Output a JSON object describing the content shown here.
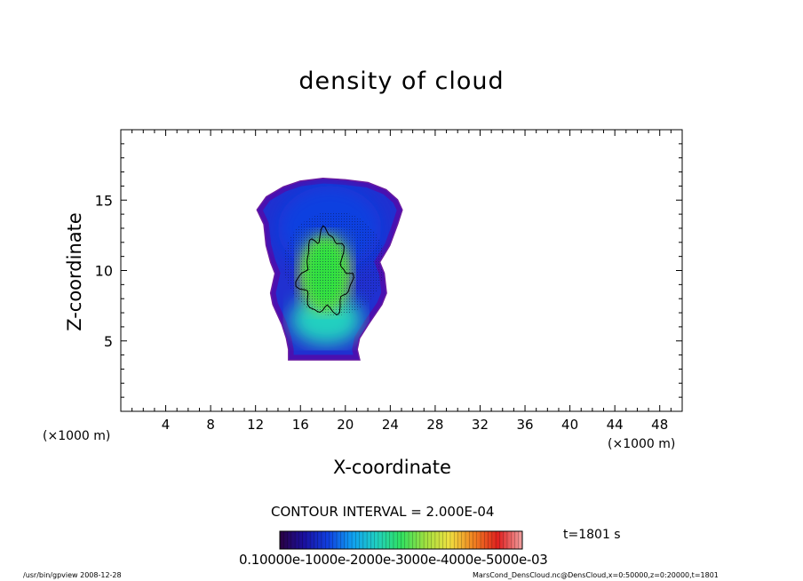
{
  "chart_data": {
    "type": "heatmap",
    "title": "density of cloud",
    "xlabel": "X-coordinate",
    "ylabel": "Z-coordinate",
    "x_unit_left": "(×1000 m)",
    "x_unit_right": "(×1000 m)",
    "xlim": [
      0,
      50
    ],
    "ylim": [
      0,
      20
    ],
    "x_ticks": [
      4,
      8,
      12,
      16,
      20,
      24,
      28,
      32,
      36,
      40,
      44,
      48
    ],
    "y_ticks": [
      5,
      10,
      15
    ],
    "contour_interval_label": "CONTOUR INTERVAL = 2.000E-04",
    "time_label": "t=1801 s",
    "colorbar_labels_text": "0.10000e-1000e-2000e-3000e-4000e-5000e-03",
    "colorbar_range": [
      0.0,
      0.0006
    ],
    "colorscale": [
      "#2a0040",
      "#1a10a0",
      "#1040e0",
      "#10a0f0",
      "#20d0c0",
      "#30e060",
      "#a0e040",
      "#f0e040",
      "#f08020",
      "#e02020",
      "#f0a0a0"
    ],
    "cloud_outline": {
      "left_edge": [
        [
          12.2,
          14.3
        ],
        [
          12.8,
          13.3
        ],
        [
          13.0,
          11.8
        ],
        [
          13.4,
          10.6
        ],
        [
          13.8,
          9.8
        ],
        [
          13.4,
          8.4
        ],
        [
          13.6,
          7.6
        ],
        [
          14.4,
          6.2
        ],
        [
          14.8,
          5.2
        ],
        [
          15.0,
          4.4
        ],
        [
          15.0,
          3.7
        ]
      ],
      "right_edge": [
        [
          25.0,
          14.3
        ],
        [
          24.6,
          13.3
        ],
        [
          23.9,
          11.8
        ],
        [
          23.0,
          10.6
        ],
        [
          23.4,
          9.8
        ],
        [
          23.6,
          8.4
        ],
        [
          23.2,
          7.6
        ],
        [
          22.0,
          6.2
        ],
        [
          21.2,
          5.2
        ],
        [
          21.0,
          4.4
        ],
        [
          21.2,
          3.7
        ]
      ],
      "top": [
        [
          12.2,
          14.3
        ],
        [
          13.0,
          15.2
        ],
        [
          14.5,
          15.9
        ],
        [
          16.0,
          16.3
        ],
        [
          18.0,
          16.5
        ],
        [
          20.0,
          16.4
        ],
        [
          22.0,
          16.2
        ],
        [
          23.6,
          15.7
        ],
        [
          24.6,
          15.0
        ],
        [
          25.0,
          14.3
        ]
      ]
    },
    "cores": [
      {
        "name": "blue",
        "center": [
          18.6,
          13.0
        ],
        "rx": 4.6,
        "ry": 3.0,
        "level": 0.00012
      },
      {
        "name": "cyan-lower",
        "center": [
          18.3,
          6.5
        ],
        "rx": 3.2,
        "ry": 1.8,
        "level": 0.00024
      },
      {
        "name": "green",
        "center": [
          18.2,
          9.8
        ],
        "rx": 2.3,
        "ry": 2.7,
        "level": 0.00036
      }
    ],
    "contour_level_value": 0.0002
  },
  "footer": {
    "left": "/usr/bin/gpview   2008-12-28",
    "right": "MarsCond_DensCloud.nc@DensCloud,x=0:50000,z=0:20000,t=1801"
  }
}
